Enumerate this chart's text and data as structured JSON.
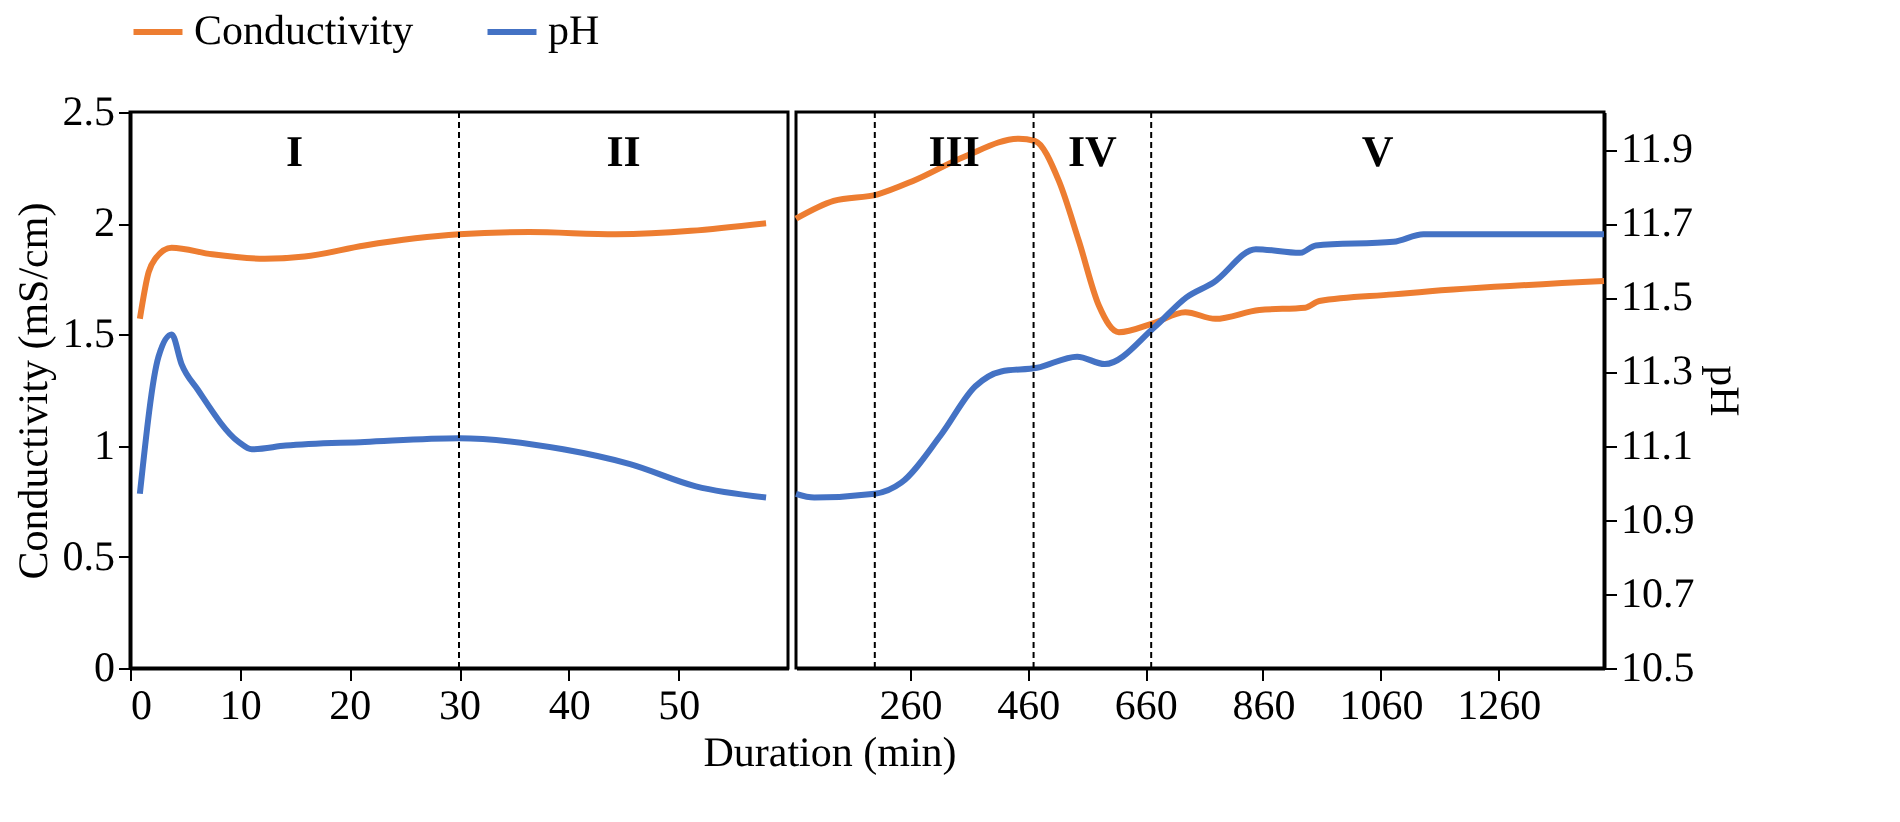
{
  "chart_data": [
    {
      "type": "line",
      "xlabel": "Duration (min)",
      "ylabel": "Conductivity (mS/cm)",
      "legend": "top",
      "xlim": [
        0,
        60
      ],
      "xticks": [
        0,
        10,
        20,
        30,
        40,
        50
      ],
      "ylim": [
        0,
        2.5
      ],
      "yticks": [
        0,
        0.5,
        1,
        1.5,
        2,
        2.5
      ],
      "y2lim": [
        10.5,
        12.0
      ],
      "series": [
        {
          "name": "Conductivity",
          "color": "#ed7d31",
          "x": [
            0.9,
            1.7,
            2.3,
            3.8,
            7.5,
            12.3,
            15.9,
            21.4,
            30,
            36.4,
            44.3,
            58
          ],
          "values": [
            1.57,
            1.78,
            1.84,
            1.89,
            1.86,
            1.84,
            1.85,
            1.9,
            1.95,
            1.96,
            1.95,
            2.0
          ]
        },
        {
          "name": "pH",
          "color": "#4472c4",
          "axis": "y2",
          "x": [
            0.9,
            2.6,
            3.8,
            4.7,
            6.2,
            9.9,
            11.1,
            14.2,
            21.4,
            30,
            39.5,
            45.6,
            51.6,
            58
          ],
          "values": [
            10.97,
            11.34,
            11.4,
            11.32,
            11.25,
            11.11,
            11.09,
            11.1,
            11.11,
            11.12,
            11.09,
            11.05,
            10.99,
            10.96
          ]
        }
      ],
      "ref_lines": [
        {
          "axis": "x",
          "value": 30,
          "line_style": "dashed",
          "color": "#000000"
        }
      ],
      "annotations": [
        "I",
        "II"
      ]
    },
    {
      "type": "line",
      "y2label": "pH",
      "xlim": [
        66,
        1440
      ],
      "xticks": [
        260,
        460,
        660,
        860,
        1060,
        1260
      ],
      "ylim": [
        0,
        2.5
      ],
      "y2lim": [
        10.5,
        12.0
      ],
      "y2ticks": [
        10.5,
        10.7,
        10.9,
        11.1,
        11.3,
        11.5,
        11.7,
        11.9
      ],
      "series": [
        {
          "color": "#ed7d31",
          "x": [
            66,
            130,
            205,
            265,
            353,
            445,
            472,
            513,
            547,
            581,
            615,
            673,
            728,
            779,
            854,
            932,
            956,
            1082,
            1126,
            1440
          ],
          "values": [
            2.02,
            2.1,
            2.13,
            2.19,
            2.3,
            2.38,
            2.37,
            2.19,
            1.92,
            1.63,
            1.51,
            1.55,
            1.6,
            1.57,
            1.61,
            1.62,
            1.65,
            1.68,
            1.69,
            1.74
          ]
        },
        {
          "color": "#4472c4",
          "axis": "y2",
          "x": [
            66,
            97,
            200,
            245,
            313,
            371,
            415,
            476,
            544,
            591,
            676,
            730,
            776,
            848,
            923,
            950,
            1082,
            1133,
            1440
          ],
          "values": [
            10.97,
            10.96,
            10.97,
            11.0,
            11.13,
            11.26,
            11.3,
            11.31,
            11.34,
            11.32,
            11.42,
            11.5,
            11.54,
            11.63,
            11.62,
            11.64,
            11.65,
            11.67,
            11.67
          ]
        }
      ],
      "ref_lines": [
        {
          "axis": "x",
          "value": 200,
          "line_style": "dashed",
          "color": "#000000"
        },
        {
          "axis": "x",
          "value": 470,
          "line_style": "dashed",
          "color": "#000000"
        },
        {
          "axis": "x",
          "value": 670,
          "line_style": "dashed",
          "color": "#000000"
        }
      ],
      "annotations": [
        "III",
        "IV",
        "V"
      ]
    }
  ]
}
